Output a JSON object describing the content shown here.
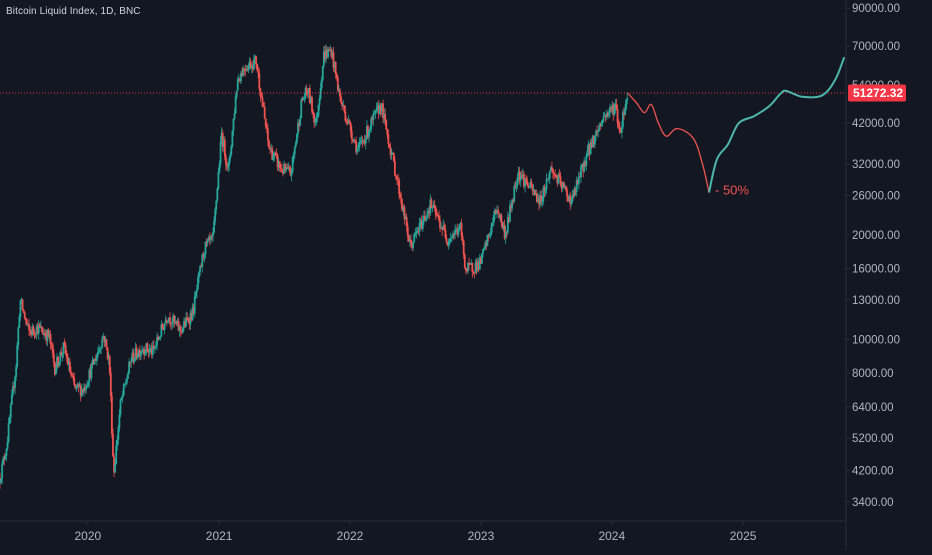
{
  "chart_data": {
    "type": "candlestick",
    "title": "Bitcoin Liquid Index, 1D, BNC",
    "y_scale": "log",
    "ylim": [
      3000,
      95000
    ],
    "xlim": [
      "2019-05-01",
      "2025-10-15"
    ],
    "x_ticks": [
      {
        "date": "2020-01-01",
        "label": "2020"
      },
      {
        "date": "2021-01-01",
        "label": "2021"
      },
      {
        "date": "2022-01-01",
        "label": "2022"
      },
      {
        "date": "2023-01-01",
        "label": "2023"
      },
      {
        "date": "2024-01-01",
        "label": "2024"
      },
      {
        "date": "2025-01-01",
        "label": "2025"
      }
    ],
    "y_ticks": [
      90000,
      70000,
      54000,
      42000,
      32000,
      26000,
      20000,
      16000,
      13000,
      10000,
      8000,
      6400,
      5200,
      4200,
      3400
    ],
    "y_tick_labels": [
      "90000.00",
      "70000.00",
      "54000.00",
      "42000.00",
      "32000.00",
      "26000.00",
      "20000.00",
      "16000.00",
      "13000.00",
      "10000.00",
      "8000.00",
      "6400.00",
      "5200.00",
      "4200.00",
      "3400.00"
    ],
    "last_price": 51272.32,
    "last_price_label": "51272.32",
    "price_key_points": [
      [
        "2019-05-01",
        4000
      ],
      [
        "2019-05-20",
        5000
      ],
      [
        "2019-06-15",
        8500
      ],
      [
        "2019-06-26",
        13000
      ],
      [
        "2019-07-20",
        10500
      ],
      [
        "2019-08-15",
        10800
      ],
      [
        "2019-09-15",
        10200
      ],
      [
        "2019-10-01",
        8300
      ],
      [
        "2019-10-26",
        9500
      ],
      [
        "2019-11-25",
        7200
      ],
      [
        "2019-12-20",
        7200
      ],
      [
        "2020-01-20",
        8700
      ],
      [
        "2020-02-14",
        10300
      ],
      [
        "2020-03-01",
        8600
      ],
      [
        "2020-03-13",
        4100
      ],
      [
        "2020-04-01",
        6500
      ],
      [
        "2020-05-01",
        8800
      ],
      [
        "2020-06-01",
        9500
      ],
      [
        "2020-07-01",
        9200
      ],
      [
        "2020-08-10",
        11800
      ],
      [
        "2020-09-15",
        10600
      ],
      [
        "2020-10-20",
        12000
      ],
      [
        "2020-11-20",
        18200
      ],
      [
        "2020-12-15",
        19500
      ],
      [
        "2021-01-08",
        39000
      ],
      [
        "2021-01-27",
        30500
      ],
      [
        "2021-02-21",
        56000
      ],
      [
        "2021-03-13",
        61000
      ],
      [
        "2021-04-14",
        63500
      ],
      [
        "2021-05-19",
        36000
      ],
      [
        "2021-06-22",
        31000
      ],
      [
        "2021-07-20",
        30000
      ],
      [
        "2021-08-20",
        49000
      ],
      [
        "2021-09-06",
        52000
      ],
      [
        "2021-09-28",
        41500
      ],
      [
        "2021-10-20",
        66000
      ],
      [
        "2021-11-10",
        68000
      ],
      [
        "2021-12-05",
        49000
      ],
      [
        "2022-01-23",
        35000
      ],
      [
        "2022-03-28",
        47500
      ],
      [
        "2022-05-12",
        29000
      ],
      [
        "2022-06-18",
        18500
      ],
      [
        "2022-08-14",
        24500
      ],
      [
        "2022-09-30",
        19500
      ],
      [
        "2022-11-05",
        21000
      ],
      [
        "2022-11-20",
        15800
      ],
      [
        "2022-12-31",
        16600
      ],
      [
        "2023-02-15",
        24000
      ],
      [
        "2023-03-10",
        20000
      ],
      [
        "2023-04-14",
        30500
      ],
      [
        "2023-06-15",
        25000
      ],
      [
        "2023-07-15",
        31000
      ],
      [
        "2023-09-11",
        25000
      ],
      [
        "2023-10-25",
        34500
      ],
      [
        "2023-12-10",
        44000
      ],
      [
        "2024-01-11",
        47000
      ],
      [
        "2024-01-23",
        39500
      ],
      [
        "2024-02-14",
        51272
      ]
    ],
    "forecast_red": [
      [
        "2024-02-14",
        51272
      ],
      [
        "2024-03-10",
        48000
      ],
      [
        "2024-04-01",
        45000
      ],
      [
        "2024-04-20",
        47500
      ],
      [
        "2024-05-10",
        42000
      ],
      [
        "2024-06-01",
        38500
      ],
      [
        "2024-07-01",
        40500
      ],
      [
        "2024-08-15",
        38000
      ],
      [
        "2024-09-10",
        32000
      ],
      [
        "2024-09-28",
        26500
      ]
    ],
    "forecast_teal": [
      [
        "2024-09-28",
        26500
      ],
      [
        "2024-10-20",
        33000
      ],
      [
        "2024-11-20",
        36500
      ],
      [
        "2024-12-20",
        42000
      ],
      [
        "2025-02-01",
        44000
      ],
      [
        "2025-03-15",
        47000
      ],
      [
        "2025-04-15",
        51000
      ],
      [
        "2025-05-01",
        52000
      ],
      [
        "2025-06-15",
        50000
      ],
      [
        "2025-08-10",
        50500
      ],
      [
        "2025-09-15",
        56000
      ],
      [
        "2025-10-10",
        65000
      ]
    ],
    "annotation": "- 50%",
    "colors": {
      "background": "#131722",
      "up": "#26a69a",
      "down": "#ef5350",
      "price_line": "#f23645",
      "forecast_red": "#ef5350",
      "forecast_teal": "#4db6ac",
      "axis_text": "#b2b5be",
      "price_label_bg": "#f23645",
      "price_label_text": "#ffffff"
    }
  }
}
